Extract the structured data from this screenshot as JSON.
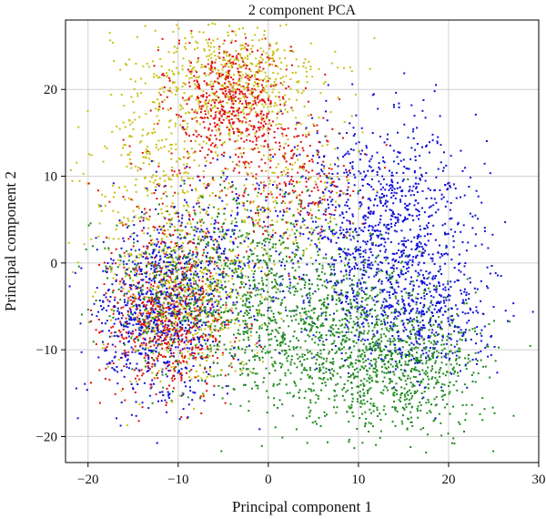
{
  "chart_data": {
    "type": "scatter",
    "title": "2 component PCA",
    "xlabel": "Principal component 1",
    "ylabel": "Principal component 2",
    "xlim": [
      -22.5,
      30
    ],
    "ylim": [
      -23,
      28
    ],
    "xticks": [
      -20,
      -10,
      0,
      10,
      20,
      30
    ],
    "yticks": [
      -20,
      -10,
      0,
      10,
      20
    ],
    "xtick_labels": [
      "−20",
      "−10",
      "0",
      "10",
      "20",
      "30"
    ],
    "ytick_labels": [
      "−20",
      "−10",
      "0",
      "10",
      "20"
    ],
    "grid": true,
    "legend": "none",
    "marker": "small square",
    "series": [
      {
        "color": "#e01010",
        "clusters": [
          {
            "cx": -4,
            "cy": 19,
            "sx": 3.2,
            "sy": 3.5,
            "n": 520
          },
          {
            "cx": 3,
            "cy": 10,
            "sx": 3.5,
            "sy": 3.5,
            "n": 220
          },
          {
            "cx": -11,
            "cy": -7,
            "sx": 3.5,
            "sy": 4,
            "n": 560
          },
          {
            "cx": -10,
            "cy": 3,
            "sx": 5,
            "sy": 6,
            "n": 180
          }
        ]
      },
      {
        "color": "#c8c010",
        "clusters": [
          {
            "cx": -4,
            "cy": 21,
            "sx": 5,
            "sy": 3.5,
            "n": 520
          },
          {
            "cx": -12,
            "cy": 10,
            "sx": 4,
            "sy": 6,
            "n": 330
          },
          {
            "cx": -9,
            "cy": -4,
            "sx": 4,
            "sy": 5,
            "n": 480
          },
          {
            "cx": 2,
            "cy": 8,
            "sx": 4,
            "sy": 5,
            "n": 200
          }
        ]
      },
      {
        "color": "#1010d8",
        "clusters": [
          {
            "cx": 13,
            "cy": 4,
            "sx": 5,
            "sy": 6,
            "n": 1050
          },
          {
            "cx": 17,
            "cy": -6,
            "sx": 4,
            "sy": 3.5,
            "n": 380
          },
          {
            "cx": -12,
            "cy": -6,
            "sx": 3.5,
            "sy": 5,
            "n": 720
          },
          {
            "cx": -5,
            "cy": 2,
            "sx": 5,
            "sy": 5,
            "n": 260
          }
        ]
      },
      {
        "color": "#208a20",
        "clusters": [
          {
            "cx": 5,
            "cy": -8,
            "sx": 7,
            "sy": 5,
            "n": 1050
          },
          {
            "cx": 15,
            "cy": -12,
            "sx": 4.5,
            "sy": 3.5,
            "n": 620
          },
          {
            "cx": -10,
            "cy": -4,
            "sx": 4,
            "sy": 4,
            "n": 380
          },
          {
            "cx": -2,
            "cy": 0,
            "sx": 6,
            "sy": 5,
            "n": 320
          }
        ]
      }
    ]
  }
}
